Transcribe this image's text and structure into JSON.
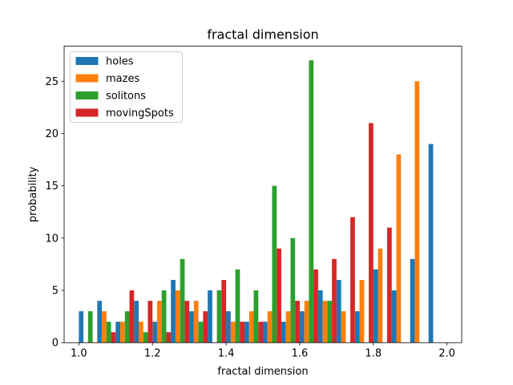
{
  "chart_data": {
    "type": "bar",
    "title": "fractal dimension",
    "xlabel": "fractal dimension",
    "ylabel": "probability",
    "xlim": [
      0.96,
      2.04
    ],
    "ylim": [
      0,
      28.35
    ],
    "x_ticks": [
      1.0,
      1.2,
      1.4,
      1.6,
      1.8,
      2.0
    ],
    "x_tick_labels": [
      "1.0",
      "1.2",
      "1.4",
      "1.6",
      "1.8",
      "2.0"
    ],
    "y_ticks": [
      0,
      5,
      10,
      15,
      20,
      25
    ],
    "y_tick_labels": [
      "0",
      "5",
      "10",
      "15",
      "20",
      "25"
    ],
    "bin_edges": [
      1.0,
      1.05,
      1.1,
      1.15,
      1.2,
      1.25,
      1.3,
      1.35,
      1.4,
      1.45,
      1.5,
      1.55,
      1.6,
      1.65,
      1.7,
      1.75,
      1.8,
      1.85,
      1.9,
      1.95,
      2.0
    ],
    "bar_width": 0.0125,
    "legend_position": "upper left",
    "grid": false,
    "series": [
      {
        "name": "holes",
        "color": "#1f77b4",
        "x": [
          1.0,
          1.05,
          1.1,
          1.15,
          1.2,
          1.25,
          1.3,
          1.35,
          1.4,
          1.45,
          1.5,
          1.55,
          1.6,
          1.65,
          1.7,
          1.75,
          1.8,
          1.85,
          1.9,
          1.95
        ],
        "values": [
          3,
          4,
          2,
          4,
          2,
          6,
          3,
          5,
          3,
          2,
          2,
          2,
          3,
          5,
          6,
          3,
          7,
          5,
          8,
          19
        ]
      },
      {
        "name": "mazes",
        "color": "#ff7f0e",
        "x": [
          1.05,
          1.1,
          1.15,
          1.2,
          1.25,
          1.3,
          1.4,
          1.45,
          1.5,
          1.55,
          1.6,
          1.65,
          1.7,
          1.75,
          1.8,
          1.85,
          1.9
        ],
        "values": [
          3,
          2,
          2,
          4,
          5,
          4,
          2,
          3,
          3,
          3,
          4,
          4,
          3,
          6,
          9,
          18,
          25
        ]
      },
      {
        "name": "solitons",
        "color": "#2ca02c",
        "x": [
          1.0,
          1.05,
          1.1,
          1.15,
          1.2,
          1.25,
          1.3,
          1.35,
          1.4,
          1.45,
          1.5,
          1.55,
          1.6,
          1.65
        ],
        "values": [
          3,
          2,
          3,
          1,
          5,
          8,
          2,
          5,
          7,
          5,
          15,
          10,
          27,
          4
        ]
      },
      {
        "name": "movingSpots",
        "color": "#d62728",
        "x": [
          1.05,
          1.1,
          1.15,
          1.2,
          1.25,
          1.3,
          1.35,
          1.4,
          1.45,
          1.5,
          1.55,
          1.6,
          1.65,
          1.7,
          1.75,
          1.8
        ],
        "values": [
          1,
          5,
          4,
          1,
          4,
          3,
          6,
          2,
          2,
          9,
          4,
          7,
          8,
          12,
          21,
          11
        ]
      }
    ]
  }
}
